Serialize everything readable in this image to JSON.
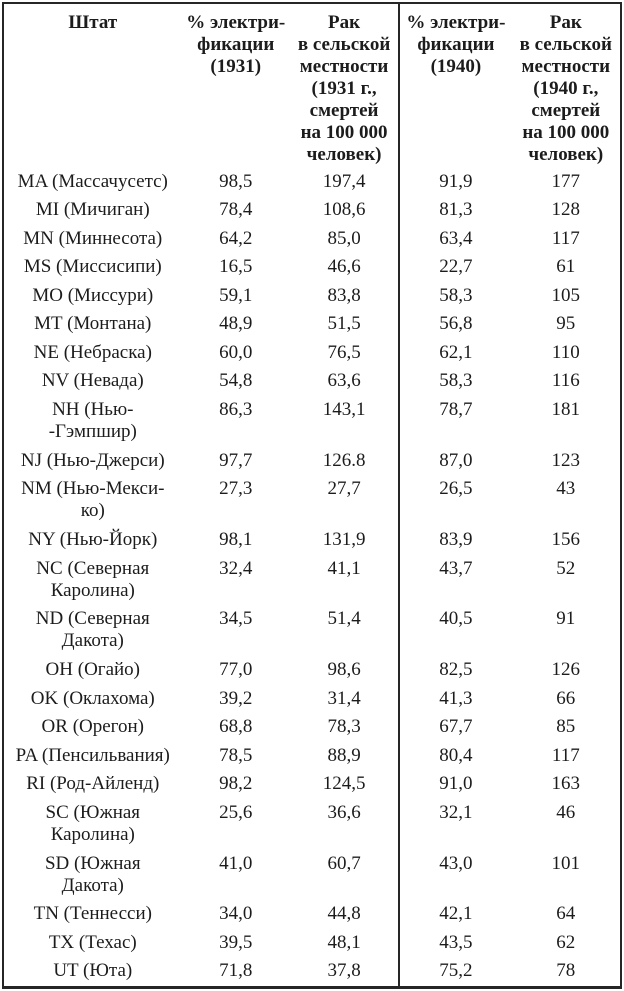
{
  "colors": {
    "background": "#ffffff",
    "text": "#1c1c1c",
    "border": "#262626"
  },
  "table": {
    "headers": {
      "state": "Штат",
      "elec_1931": "% электри-\nфикации\n(1931)",
      "cancer_1931": "Рак\nв сельской\nместности\n(1931 г.,\nсмертей\nна 100 000\nчеловек)",
      "elec_1940": "% электри-\nфикации\n(1940)",
      "cancer_1940": "Рак\nв сельской\nместности\n(1940 г.,\nсмертей\nна 100 000\nчеловек)"
    },
    "rows": [
      {
        "state": "MA (Массачусетс)",
        "elec_1931": "98,5",
        "cancer_1931": "197,4",
        "elec_1940": "91,9",
        "cancer_1940": "177"
      },
      {
        "state": "MI (Мичиган)",
        "elec_1931": "78,4",
        "cancer_1931": "108,6",
        "elec_1940": "81,3",
        "cancer_1940": "128"
      },
      {
        "state": "MN (Миннесота)",
        "elec_1931": "64,2",
        "cancer_1931": "85,0",
        "elec_1940": "63,4",
        "cancer_1940": "117"
      },
      {
        "state": "MS (Миссисипи)",
        "elec_1931": "16,5",
        "cancer_1931": "46,6",
        "elec_1940": "22,7",
        "cancer_1940": "61"
      },
      {
        "state": "MO (Миссури)",
        "elec_1931": "59,1",
        "cancer_1931": "83,8",
        "elec_1940": "58,3",
        "cancer_1940": "105"
      },
      {
        "state": "MT (Монтана)",
        "elec_1931": "48,9",
        "cancer_1931": "51,5",
        "elec_1940": "56,8",
        "cancer_1940": "95"
      },
      {
        "state": "NE (Небраска)",
        "elec_1931": "60,0",
        "cancer_1931": "76,5",
        "elec_1940": "62,1",
        "cancer_1940": "110"
      },
      {
        "state": "NV (Невада)",
        "elec_1931": "54,8",
        "cancer_1931": "63,6",
        "elec_1940": "58,3",
        "cancer_1940": "116"
      },
      {
        "state": "NH (Нью-\n-Гэмпшир)",
        "elec_1931": "86,3",
        "cancer_1931": "143,1",
        "elec_1940": "78,7",
        "cancer_1940": "181"
      },
      {
        "state": "NJ (Нью-Джерси)",
        "elec_1931": "97,7",
        "cancer_1931": "126.8",
        "elec_1940": "87,0",
        "cancer_1940": "123"
      },
      {
        "state": "NM (Нью-Мекси-\nко)",
        "elec_1931": "27,3",
        "cancer_1931": "27,7",
        "elec_1940": "26,5",
        "cancer_1940": "43"
      },
      {
        "state": "NY (Нью-Йорк)",
        "elec_1931": "98,1",
        "cancer_1931": "131,9",
        "elec_1940": "83,9",
        "cancer_1940": "156"
      },
      {
        "state": "NC (Северная\nКаролина)",
        "elec_1931": "32,4",
        "cancer_1931": "41,1",
        "elec_1940": "43,7",
        "cancer_1940": "52"
      },
      {
        "state": "ND (Северная\nДакота)",
        "elec_1931": "34,5",
        "cancer_1931": "51,4",
        "elec_1940": "40,5",
        "cancer_1940": "91"
      },
      {
        "state": "OH (Огайо)",
        "elec_1931": "77,0",
        "cancer_1931": "98,6",
        "elec_1940": "82,5",
        "cancer_1940": "126"
      },
      {
        "state": "OK (Оклахома)",
        "elec_1931": "39,2",
        "cancer_1931": "31,4",
        "elec_1940": "41,3",
        "cancer_1940": "66"
      },
      {
        "state": "OR (Орегон)",
        "elec_1931": "68,8",
        "cancer_1931": "78,3",
        "elec_1940": "67,7",
        "cancer_1940": "85"
      },
      {
        "state": "PA (Пенсильвания)",
        "elec_1931": "78,5",
        "cancer_1931": "88,9",
        "elec_1940": "80,4",
        "cancer_1940": "117"
      },
      {
        "state": "RI (Род-Айленд)",
        "elec_1931": "98,2",
        "cancer_1931": "124,5",
        "elec_1940": "91,0",
        "cancer_1940": "163"
      },
      {
        "state": "SC (Южная\nКаролина)",
        "elec_1931": "25,6",
        "cancer_1931": "36,6",
        "elec_1940": "32,1",
        "cancer_1940": "46"
      },
      {
        "state": "SD (Южная\nДакота)",
        "elec_1931": "41,0",
        "cancer_1931": "60,7",
        "elec_1940": "43,0",
        "cancer_1940": "101"
      },
      {
        "state": "TN (Теннесси)",
        "elec_1931": "34,0",
        "cancer_1931": "44,8",
        "elec_1940": "42,1",
        "cancer_1940": "64"
      },
      {
        "state": "TX (Техас)",
        "elec_1931": "39,5",
        "cancer_1931": "48,1",
        "elec_1940": "43,5",
        "cancer_1940": "62"
      },
      {
        "state": "UT (Юта)",
        "elec_1931": "71,8",
        "cancer_1931": "37,8",
        "elec_1940": "75,2",
        "cancer_1940": "78"
      }
    ]
  }
}
